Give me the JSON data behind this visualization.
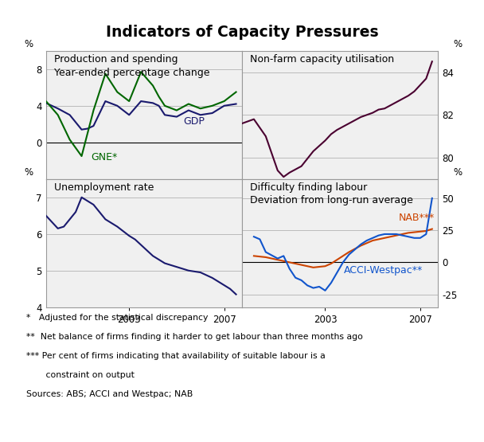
{
  "title": "Indicators of Capacity Pressures",
  "bg_color": "#f0f0f0",
  "grid_color": "#bbbbbb",
  "panel1": {
    "title_line1": "Production and spending",
    "title_line2": "Year-ended percentage change",
    "gdp_color": "#1a1a6e",
    "gne_color": "#006600",
    "gdp_label": "GDP",
    "gne_label": "GNE*",
    "ylim": [
      -4,
      10
    ],
    "yticks": [
      0,
      4,
      8
    ],
    "yticklabels": [
      "0",
      "4",
      "8"
    ],
    "x": [
      1999.5,
      2000.0,
      2000.5,
      2001.0,
      2001.25,
      2001.5,
      2002.0,
      2002.5,
      2003.0,
      2003.5,
      2004.0,
      2004.25,
      2004.5,
      2005.0,
      2005.5,
      2006.0,
      2006.5,
      2007.0,
      2007.5
    ],
    "gdp": [
      4.3,
      3.7,
      3.0,
      1.4,
      1.5,
      1.8,
      4.5,
      4.0,
      3.0,
      4.5,
      4.3,
      4.0,
      3.0,
      2.8,
      3.5,
      3.0,
      3.2,
      4.0,
      4.2
    ],
    "gne": [
      4.5,
      3.0,
      0.3,
      -1.5,
      1.0,
      3.5,
      7.5,
      5.5,
      4.5,
      7.7,
      6.2,
      5.0,
      4.0,
      3.5,
      4.2,
      3.7,
      4.0,
      4.5,
      5.5
    ]
  },
  "panel2": {
    "title": "Non-farm capacity utilisation",
    "line_color": "#4a0030",
    "ylim": [
      79.0,
      85.0
    ],
    "yticks": [
      80,
      82,
      84
    ],
    "yticklabels": [
      "80",
      "82",
      "84"
    ],
    "x": [
      1999.5,
      1999.75,
      2000.0,
      2000.5,
      2001.0,
      2001.25,
      2001.5,
      2002.0,
      2002.5,
      2003.0,
      2003.25,
      2003.5,
      2004.0,
      2004.25,
      2004.5,
      2004.75,
      2005.0,
      2005.25,
      2005.5,
      2005.75,
      2006.0,
      2006.25,
      2006.5,
      2006.75,
      2007.0,
      2007.25,
      2007.5
    ],
    "cap": [
      81.6,
      81.7,
      81.8,
      81.0,
      79.4,
      79.1,
      79.3,
      79.6,
      80.3,
      80.8,
      81.1,
      81.3,
      81.6,
      81.75,
      81.9,
      82.0,
      82.1,
      82.25,
      82.3,
      82.45,
      82.6,
      82.75,
      82.9,
      83.1,
      83.4,
      83.7,
      84.5
    ]
  },
  "panel3": {
    "title": "Unemployment rate",
    "line_color": "#1a1a6e",
    "ylim": [
      4.0,
      7.5
    ],
    "yticks": [
      4,
      5,
      6,
      7
    ],
    "yticklabels": [
      "4",
      "5",
      "6",
      "7"
    ],
    "x": [
      1999.5,
      2000.0,
      2000.25,
      2000.5,
      2000.75,
      2001.0,
      2001.25,
      2001.5,
      2002.0,
      2002.5,
      2003.0,
      2003.25,
      2003.5,
      2004.0,
      2004.5,
      2005.0,
      2005.5,
      2006.0,
      2006.5,
      2007.0,
      2007.25,
      2007.5
    ],
    "unemp": [
      6.5,
      6.15,
      6.2,
      6.4,
      6.6,
      7.0,
      6.9,
      6.8,
      6.4,
      6.2,
      5.95,
      5.85,
      5.7,
      5.4,
      5.2,
      5.1,
      5.0,
      4.95,
      4.8,
      4.6,
      4.5,
      4.35
    ]
  },
  "panel4": {
    "title_line1": "Difficulty finding labour",
    "title_line2": "Deviation from long-run average",
    "nab_color": "#cc4400",
    "acci_color": "#1155cc",
    "nab_label": "NAB***",
    "acci_label": "ACCI-Westpac**",
    "ylim": [
      -35,
      65
    ],
    "yticks": [
      -25,
      0,
      25,
      50
    ],
    "yticklabels": [
      "-25",
      "0",
      "25",
      "50"
    ],
    "nab_x": [
      2000.0,
      2000.5,
      2001.0,
      2001.5,
      2002.0,
      2002.25,
      2002.5,
      2003.0,
      2003.25,
      2003.5,
      2004.0,
      2004.5,
      2005.0,
      2005.25,
      2005.5,
      2006.0,
      2006.25,
      2006.5,
      2006.75,
      2007.0,
      2007.25,
      2007.5
    ],
    "nab_y": [
      5,
      4,
      2,
      0,
      -2,
      -3,
      -4,
      -3,
      -1,
      2,
      8,
      13,
      17,
      18,
      19,
      21,
      22,
      23,
      23.5,
      24,
      24.5,
      26
    ],
    "acci_x": [
      2000.0,
      2000.25,
      2000.5,
      2001.0,
      2001.25,
      2001.5,
      2001.75,
      2002.0,
      2002.25,
      2002.5,
      2002.75,
      2003.0,
      2003.25,
      2003.5,
      2003.75,
      2004.0,
      2004.25,
      2004.5,
      2004.75,
      2005.0,
      2005.25,
      2005.5,
      2005.75,
      2006.0,
      2006.25,
      2006.5,
      2006.75,
      2007.0,
      2007.25,
      2007.5
    ],
    "acci_y": [
      20,
      18,
      8,
      3,
      5,
      -5,
      -12,
      -14,
      -18,
      -20,
      -19,
      -22,
      -16,
      -8,
      0,
      6,
      10,
      14,
      17,
      19,
      21,
      22,
      22,
      22,
      21,
      20,
      19,
      19,
      22,
      50
    ]
  }
}
